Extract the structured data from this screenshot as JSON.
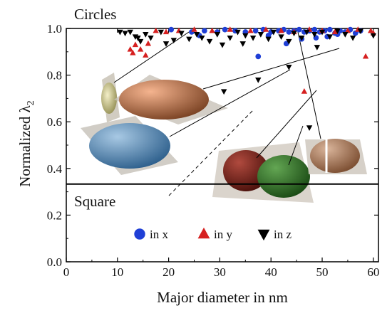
{
  "chart_data": {
    "type": "scatter",
    "xlabel": "Major diameter in nm",
    "ylabel_main": "Normalized λ",
    "ylabel_sub": "2",
    "xlim": [
      0,
      61
    ],
    "ylim": [
      0,
      1.0
    ],
    "x_ticks": [
      "0",
      "10",
      "20",
      "30",
      "40",
      "50",
      "60"
    ],
    "y_ticks": [
      "0.0",
      "0.2",
      "0.4",
      "0.6",
      "0.8",
      "1.0"
    ],
    "reference_line": {
      "y": 0.333,
      "color": "#000000"
    },
    "annotations": {
      "circles": "Circles",
      "square": "Square"
    },
    "series": [
      {
        "name": "in x",
        "marker": "circle",
        "color": "#1f3fd6",
        "points": [
          [
            20.5,
            0.995
          ],
          [
            24.5,
            0.985
          ],
          [
            27,
            0.99
          ],
          [
            29.5,
            0.985
          ],
          [
            31,
            0.995
          ],
          [
            33,
            0.99
          ],
          [
            35,
            0.985
          ],
          [
            37,
            0.99
          ],
          [
            37.5,
            0.88
          ],
          [
            38.5,
            0.995
          ],
          [
            40,
            0.985
          ],
          [
            41.5,
            0.99
          ],
          [
            42.5,
            0.995
          ],
          [
            43.5,
            0.985
          ],
          [
            44.5,
            0.99
          ],
          [
            45.5,
            0.995
          ],
          [
            46.5,
            0.985
          ],
          [
            47.5,
            0.99
          ],
          [
            48.5,
            0.995
          ],
          [
            49.5,
            0.985
          ],
          [
            50.5,
            0.99
          ],
          [
            51.5,
            0.995
          ],
          [
            52.5,
            0.98
          ],
          [
            53.5,
            0.99
          ],
          [
            54.5,
            0.985
          ],
          [
            55.5,
            0.995
          ],
          [
            56.5,
            0.98
          ],
          [
            57.5,
            0.99
          ],
          [
            48.8,
            0.96
          ],
          [
            51,
            0.965
          ],
          [
            43,
            0.935
          ],
          [
            39.5,
            0.97
          ],
          [
            46,
            0.955
          ],
          [
            53,
            0.975
          ],
          [
            26,
            0.97
          ]
        ]
      },
      {
        "name": "in y",
        "marker": "triangle-up",
        "color": "#d62020",
        "points": [
          [
            12.5,
            0.91
          ],
          [
            13,
            0.895
          ],
          [
            13.5,
            0.93
          ],
          [
            14.5,
            0.91
          ],
          [
            15.5,
            0.885
          ],
          [
            16,
            0.935
          ],
          [
            17.5,
            0.99
          ],
          [
            19.5,
            0.985
          ],
          [
            22,
            0.99
          ],
          [
            25,
            0.995
          ],
          [
            28.5,
            0.99
          ],
          [
            32,
            0.995
          ],
          [
            36,
            0.99
          ],
          [
            39,
            0.995
          ],
          [
            42,
            0.99
          ],
          [
            44.5,
            0.985
          ],
          [
            46.5,
            0.73
          ],
          [
            47.5,
            0.995
          ],
          [
            50,
            0.99
          ],
          [
            52.5,
            0.985
          ],
          [
            55,
            0.99
          ],
          [
            57,
            0.995
          ],
          [
            58.5,
            0.88
          ],
          [
            59.5,
            0.99
          ],
          [
            60,
            0.98
          ]
        ]
      },
      {
        "name": "in z",
        "marker": "triangle-down",
        "color": "#000000",
        "points": [
          [
            10.5,
            0.985
          ],
          [
            11.5,
            0.98
          ],
          [
            12.5,
            0.985
          ],
          [
            13.5,
            0.965
          ],
          [
            14,
            0.96
          ],
          [
            14.5,
            0.945
          ],
          [
            15.5,
            0.975
          ],
          [
            16.5,
            0.96
          ],
          [
            18.5,
            0.985
          ],
          [
            19.5,
            0.935
          ],
          [
            21,
            0.95
          ],
          [
            22.5,
            0.98
          ],
          [
            24,
            0.955
          ],
          [
            25.5,
            0.975
          ],
          [
            26.5,
            0.96
          ],
          [
            28,
            0.945
          ],
          [
            29.5,
            0.975
          ],
          [
            30.5,
            0.93
          ],
          [
            32,
            0.96
          ],
          [
            33.5,
            0.985
          ],
          [
            34.5,
            0.935
          ],
          [
            35,
            0.97
          ],
          [
            36.5,
            0.96
          ],
          [
            38,
            0.975
          ],
          [
            39.5,
            0.955
          ],
          [
            40.5,
            0.985
          ],
          [
            42,
            0.965
          ],
          [
            43.5,
            0.945
          ],
          [
            44.5,
            0.98
          ],
          [
            46,
            0.96
          ],
          [
            47,
            0.985
          ],
          [
            47.5,
            0.575
          ],
          [
            48.5,
            0.975
          ],
          [
            50,
            0.985
          ],
          [
            51.5,
            0.965
          ],
          [
            53,
            0.99
          ],
          [
            54.5,
            0.975
          ],
          [
            56,
            0.96
          ],
          [
            57.5,
            0.99
          ],
          [
            60,
            0.97
          ],
          [
            30.8,
            0.73
          ],
          [
            37.5,
            0.78
          ],
          [
            43.5,
            0.835
          ],
          [
            49,
            0.92
          ]
        ]
      }
    ],
    "legend": {
      "placement": "bottom-center",
      "entries": [
        "in x",
        "in y",
        "in z"
      ]
    }
  }
}
